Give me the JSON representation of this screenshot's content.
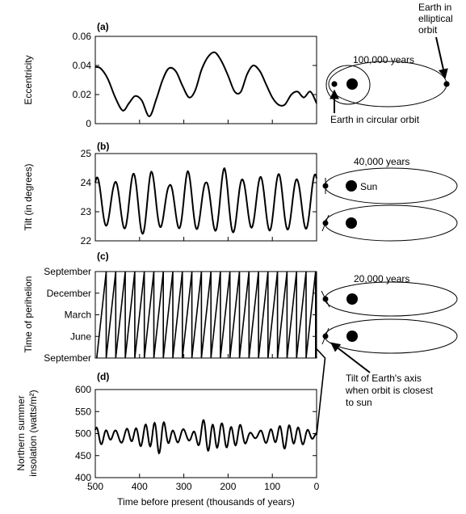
{
  "chart_data": [
    {
      "type": "line",
      "panel_label": "(a)",
      "ylabel": "Eccentricity",
      "ylim": [
        0,
        0.06
      ],
      "yticks": [
        "0",
        "0.02",
        "0.04",
        "0.06"
      ],
      "xlim": [
        500,
        0
      ],
      "x": [
        500,
        488,
        472,
        455,
        438,
        424,
        410,
        395,
        378,
        362,
        348,
        334,
        318,
        303,
        288,
        274,
        260,
        245,
        230,
        215,
        200,
        185,
        171,
        157,
        143,
        128,
        114,
        100,
        86,
        72,
        57,
        43,
        29,
        14,
        0
      ],
      "values": [
        0.039,
        0.038,
        0.031,
        0.018,
        0.009,
        0.014,
        0.019,
        0.016,
        0.005,
        0.017,
        0.03,
        0.038,
        0.036,
        0.026,
        0.018,
        0.023,
        0.037,
        0.046,
        0.049,
        0.043,
        0.033,
        0.022,
        0.022,
        0.034,
        0.04,
        0.036,
        0.027,
        0.018,
        0.013,
        0.013,
        0.02,
        0.022,
        0.018,
        0.022,
        0.014
      ]
    },
    {
      "type": "line",
      "panel_label": "(b)",
      "ylabel": "Tilt (in degrees)",
      "ylim": [
        22,
        25
      ],
      "yticks": [
        "22",
        "23",
        "24",
        "25"
      ],
      "xlim": [
        500,
        0
      ],
      "period_kyr": 41,
      "mean": 23.3,
      "amplitude": [
        0.9,
        0.7,
        1.0,
        1.1,
        0.6,
        1.1,
        0.7,
        1.2,
        0.8,
        0.9,
        1.0,
        0.8,
        1.0
      ]
    },
    {
      "type": "line",
      "panel_label": "(c)",
      "ylabel": "Time of perihelion",
      "yticks": [
        "September",
        "June",
        "March",
        "December",
        "September"
      ],
      "xlim": [
        500,
        0
      ],
      "period_kyr": 21.5
    },
    {
      "type": "line",
      "panel_label": "(d)",
      "ylabel_lines": [
        "Northern summer",
        "insolation (watts/m²)"
      ],
      "ylim": [
        400,
        600
      ],
      "yticks": [
        "400",
        "450",
        "500",
        "550",
        "600"
      ],
      "xlim": [
        500,
        0
      ],
      "xticks": [
        "500",
        "400",
        "300",
        "200",
        "100",
        "0"
      ],
      "xlabel": "Time before present (thousands of years)",
      "mean": 495,
      "amplitude": [
        18,
        25,
        30,
        22,
        36,
        20,
        33,
        40,
        24,
        30,
        26,
        20,
        25,
        20,
        18
      ]
    }
  ],
  "annotations": {
    "ecc_years": "100,000 years",
    "elliptical": [
      "Earth in",
      "elliptical",
      "orbit"
    ],
    "circular": "Earth in circular orbit",
    "tilt_years": "40,000 years",
    "sun": "Sun",
    "prec_years": "20,000 years",
    "tilt_note": [
      "Tilt of Earth's axis",
      "when orbit is closest",
      "to sun"
    ]
  }
}
